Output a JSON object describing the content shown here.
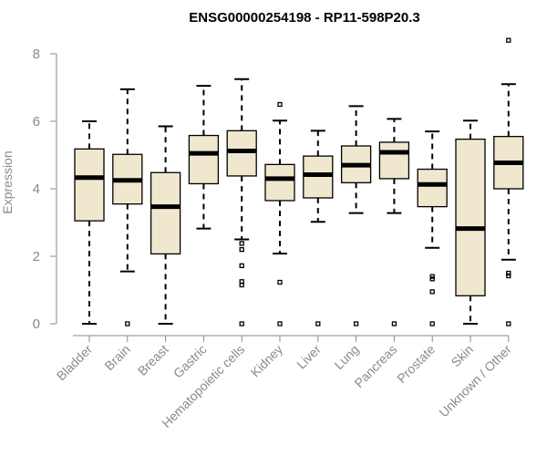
{
  "chart_data": {
    "type": "boxplot",
    "title": "ENSG00000254198 - RP11-598P20.3",
    "xlabel": "",
    "ylabel": "Expression",
    "ylim": [
      0,
      8.6
    ],
    "yticks": [
      0,
      2,
      4,
      6,
      8
    ],
    "box_fill": "#efe8cf",
    "axis_color": "#8a8a8a",
    "categories": [
      "Bladder",
      "Brain",
      "Breast",
      "Gastric",
      "Hematopoietic cells",
      "Kidney",
      "Liver",
      "Lung",
      "Pancreas",
      "Prostate",
      "Skin",
      "Unknown / Other"
    ],
    "boxes": [
      {
        "name": "Bladder",
        "lower_whisker": 0.0,
        "q1": 3.05,
        "median": 4.33,
        "q3": 5.18,
        "upper_whisker": 6.0,
        "outliers": []
      },
      {
        "name": "Brain",
        "lower_whisker": 1.55,
        "q1": 3.55,
        "median": 4.25,
        "q3": 5.02,
        "upper_whisker": 6.95,
        "outliers": [
          0.0
        ]
      },
      {
        "name": "Breast",
        "lower_whisker": 0.0,
        "q1": 2.07,
        "median": 3.47,
        "q3": 4.48,
        "upper_whisker": 5.85,
        "outliers": []
      },
      {
        "name": "Gastric",
        "lower_whisker": 2.82,
        "q1": 4.15,
        "median": 5.05,
        "q3": 5.58,
        "upper_whisker": 7.05,
        "outliers": []
      },
      {
        "name": "Hematopoietic cells",
        "lower_whisker": 2.5,
        "q1": 4.38,
        "median": 5.12,
        "q3": 5.72,
        "upper_whisker": 7.25,
        "outliers": [
          2.38,
          2.2,
          1.72,
          1.25,
          1.15,
          0.0
        ]
      },
      {
        "name": "Kidney",
        "lower_whisker": 2.08,
        "q1": 3.65,
        "median": 4.3,
        "q3": 4.72,
        "upper_whisker": 6.02,
        "outliers": [
          6.5,
          1.23,
          0.0
        ]
      },
      {
        "name": "Liver",
        "lower_whisker": 3.02,
        "q1": 3.73,
        "median": 4.42,
        "q3": 4.97,
        "upper_whisker": 5.72,
        "outliers": [
          0.0
        ]
      },
      {
        "name": "Lung",
        "lower_whisker": 3.28,
        "q1": 4.18,
        "median": 4.7,
        "q3": 5.27,
        "upper_whisker": 6.45,
        "outliers": [
          0.0
        ]
      },
      {
        "name": "Pancreas",
        "lower_whisker": 3.28,
        "q1": 4.3,
        "median": 5.08,
        "q3": 5.38,
        "upper_whisker": 6.07,
        "outliers": [
          0.0
        ]
      },
      {
        "name": "Prostate",
        "lower_whisker": 2.25,
        "q1": 3.47,
        "median": 4.13,
        "q3": 4.58,
        "upper_whisker": 5.7,
        "outliers": [
          1.4,
          1.33,
          0.95,
          0.0
        ]
      },
      {
        "name": "Skin",
        "lower_whisker": 0.0,
        "q1": 0.83,
        "median": 2.82,
        "q3": 5.47,
        "upper_whisker": 6.02,
        "outliers": []
      },
      {
        "name": "Unknown / Other",
        "lower_whisker": 1.9,
        "q1": 4.0,
        "median": 4.77,
        "q3": 5.55,
        "upper_whisker": 7.1,
        "outliers": [
          8.4,
          1.5,
          1.42,
          0.0
        ]
      }
    ]
  }
}
